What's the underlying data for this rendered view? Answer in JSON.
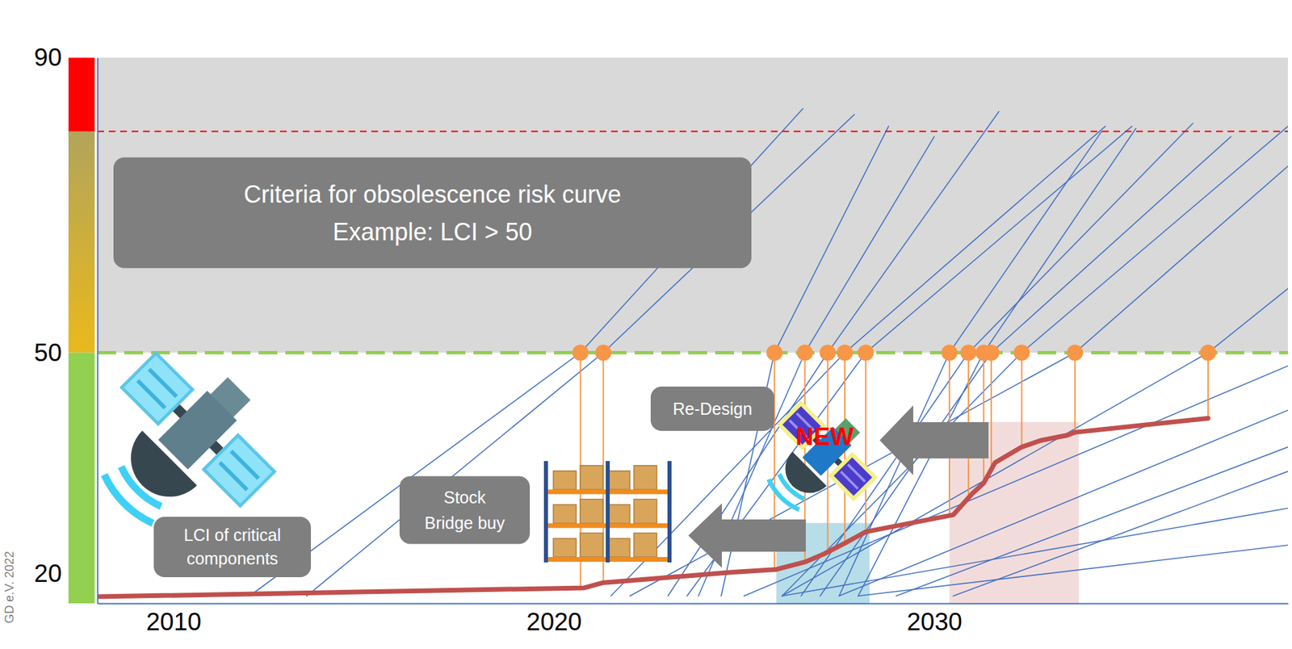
{
  "chart_data": {
    "type": "line",
    "xlim": [
      2008,
      2039.3
    ],
    "xticks": [
      2010,
      2020,
      2030
    ],
    "ylim": [
      16,
      90
    ],
    "yticks": [
      20,
      50,
      90
    ],
    "grid": false,
    "series": [
      {
        "type": "line",
        "color": "#c0504d",
        "x": [
          2008.0,
          2020.8,
          2021.3,
          2024.65,
          2025.85,
          2026.6,
          2027.1,
          2027.7,
          2028.2,
          2030.5,
          2031.0,
          2031.3,
          2031.6,
          2032.3,
          2032.8,
          2033.5,
          2033.7,
          2037.2
        ],
        "values": [
          16.9,
          18.1,
          18.8,
          20.2,
          20.6,
          21.6,
          22.7,
          24.3,
          25.7,
          28.0,
          30.9,
          32.3,
          35.1,
          37.2,
          38.1,
          38.8,
          39.2,
          41.1
        ]
      },
      {
        "type": "line",
        "color": "#4472c4",
        "x": [
          2012.0,
          2020.7,
          2026.55
        ],
        "values": [
          17,
          50,
          83.1
        ]
      },
      {
        "type": "line",
        "color": "#4472c4",
        "x": [
          2013.5,
          2021.3,
          2027.9
        ],
        "values": [
          17,
          50,
          82.3
        ]
      },
      {
        "type": "line",
        "color": "#4472c4",
        "x": [
          2024.4,
          2025.8,
          2028.8
        ],
        "values": [
          17,
          50,
          80.7
        ]
      },
      {
        "type": "line",
        "color": "#4472c4",
        "x": [
          2023.8,
          2026.6,
          2030.0
        ],
        "values": [
          17,
          50,
          79.3
        ]
      },
      {
        "type": "line",
        "color": "#4472c4",
        "x": [
          2023.0,
          2027.2,
          2031.7
        ],
        "values": [
          17,
          50,
          82.7
        ]
      },
      {
        "type": "line",
        "color": "#4472c4",
        "x": [
          2021.5,
          2027.65,
          2034.5
        ],
        "values": [
          17,
          50,
          80.7
        ]
      },
      {
        "type": "line",
        "color": "#4472c4",
        "x": [
          2023.5,
          2028.2,
          2035.2
        ],
        "values": [
          17,
          50,
          80.7
        ]
      },
      {
        "type": "line",
        "color": "#4472c4",
        "x": [
          2027.5,
          2030.4,
          2034.4
        ],
        "values": [
          17,
          50,
          80.0
        ]
      },
      {
        "type": "line",
        "color": "#4472c4",
        "x": [
          2026.5,
          2030.9,
          2036.8
        ],
        "values": [
          17,
          50,
          81.1
        ]
      },
      {
        "type": "line",
        "color": "#4472c4",
        "x": [
          2028.0,
          2031.3,
          2035.3
        ],
        "values": [
          17,
          50,
          80.4
        ]
      },
      {
        "type": "line",
        "color": "#4472c4",
        "x": [
          2027.0,
          2031.5,
          2037.8
        ],
        "values": [
          17,
          50,
          79.3
        ]
      },
      {
        "type": "line",
        "color": "#4472c4",
        "x": [
          2026.0,
          2032.3,
          2039.3
        ],
        "values": [
          17,
          50,
          80.7
        ]
      },
      {
        "type": "line",
        "color": "#4472c4",
        "x": [
          2022.0,
          2033.7,
          2039.3
        ],
        "values": [
          17,
          50,
          75.3
        ]
      },
      {
        "type": "line",
        "color": "#4472c4",
        "x": [
          2026.0,
          2037.2,
          2039.3
        ],
        "values": [
          17,
          50,
          58.7
        ]
      },
      {
        "type": "line",
        "color": "#4472c4",
        "x": [
          2025.0,
          2039.3
        ],
        "values": [
          17,
          48.2
        ]
      },
      {
        "type": "line",
        "color": "#4472c4",
        "x": [
          2027.5,
          2039.3
        ],
        "values": [
          17,
          42.2
        ]
      },
      {
        "type": "line",
        "color": "#4472c4",
        "x": [
          2029.0,
          2039.3
        ],
        "values": [
          17,
          37.2
        ]
      },
      {
        "type": "line",
        "color": "#4472c4",
        "x": [
          2030.5,
          2039.3
        ],
        "values": [
          17,
          33.9
        ]
      },
      {
        "type": "line",
        "color": "#4472c4",
        "x": [
          2026.0,
          2039.3
        ],
        "values": [
          17,
          28.9
        ]
      },
      {
        "type": "line",
        "color": "#4472c4",
        "x": [
          2028.0,
          2039.3
        ],
        "values": [
          17,
          23.9
        ]
      },
      {
        "type": "scatter",
        "color": "#f79646",
        "marker": "circle",
        "x": [
          2020.7,
          2021.3,
          2025.8,
          2026.6,
          2027.2,
          2027.65,
          2028.2,
          2030.4,
          2030.9,
          2031.3,
          2031.5,
          2032.3,
          2033.7,
          2037.2
        ],
        "values": [
          50,
          50,
          50,
          50,
          50,
          50,
          50,
          50,
          50,
          50,
          50,
          50,
          50,
          50
        ]
      }
    ],
    "reference_lines": [
      {
        "value": 80,
        "color": "#ff0000",
        "line_style": "dashed"
      },
      {
        "value": 50,
        "color": "#92d050",
        "line_style": "dashed"
      }
    ],
    "bands": [
      {
        "y": [
          50,
          90
        ],
        "color": "#d9d9d9"
      }
    ],
    "regions": [
      {
        "x": [
          2025.85,
          2028.3
        ],
        "y": [
          16,
          26.9
        ],
        "color": "#b7dde8"
      },
      {
        "x": [
          2030.4,
          2033.8
        ],
        "y": [
          16,
          40.6
        ],
        "color": "#f2dcdb"
      }
    ],
    "risk_scale": [
      {
        "y": [
          80,
          90
        ],
        "color": "#ff0000"
      },
      {
        "y": [
          50,
          80
        ],
        "colors": [
          "#b3a45a",
          "#e9b91c"
        ]
      },
      {
        "y": [
          16,
          50
        ],
        "color": "#92d050"
      }
    ],
    "annotations": [
      {
        "text": [
          "Criteria for obsolescence risk curve",
          "Example: LCI > 50"
        ]
      },
      {
        "text": [
          "Re-Design"
        ]
      },
      {
        "text": [
          "Stock",
          "Bridge buy"
        ]
      },
      {
        "text": [
          "LCI of critical",
          "components"
        ]
      },
      {
        "text": [
          "NEW"
        ],
        "color": "#ff0000"
      }
    ],
    "source": "GD e.V. 2022"
  }
}
